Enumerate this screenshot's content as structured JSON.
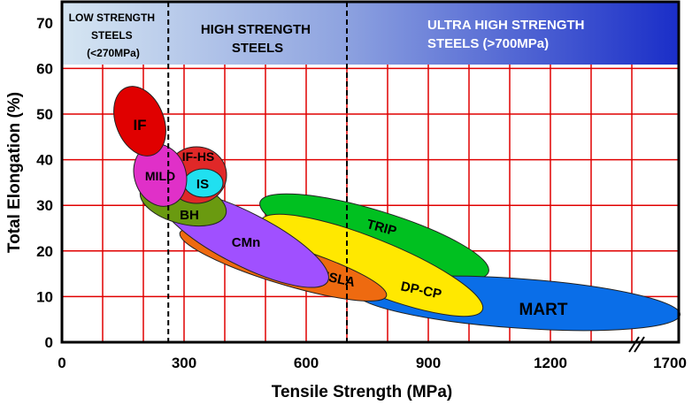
{
  "chart_data": {
    "type": "region-map",
    "title": "",
    "xlabel": "Tensile Strength (MPa)",
    "ylabel": "Total Elongation (%)",
    "xlim": [
      0,
      1700
    ],
    "ylim": [
      0,
      70
    ],
    "x_ticks": [
      "0",
      "300",
      "600",
      "900",
      "1200",
      "1700"
    ],
    "y_ticks": [
      "0",
      "10",
      "20",
      "30",
      "40",
      "50",
      "60",
      "70"
    ],
    "x_axis_break": "between 1400 and 1700",
    "grid": true,
    "grid_color": "#e00000",
    "boundaries_mpa": [
      270,
      700
    ],
    "bands": [
      {
        "lines": [
          "LOW STRENGTH",
          "STEELS",
          "(<270MPa)"
        ]
      },
      {
        "lines": [
          "HIGH STRENGTH",
          "STEELS"
        ]
      },
      {
        "lines": [
          "ULTRA HIGH STRENGTH",
          "STEELS (>700MPa)"
        ]
      }
    ],
    "regions": [
      {
        "label": "TRIP",
        "color": "#00c020",
        "strength_mpa": [
          490,
          1050
        ],
        "elongation_pct": [
          13,
          33
        ]
      },
      {
        "label": "MART",
        "color": "#0a6ee8",
        "strength_mpa": [
          720,
          1700
        ],
        "elongation_pct": [
          3,
          15
        ]
      },
      {
        "label": "DP-CP",
        "color": "#ffe800",
        "strength_mpa": [
          480,
          1030
        ],
        "elongation_pct": [
          5,
          30
        ]
      },
      {
        "label": "HSLA",
        "color": "#ee6a10",
        "strength_mpa": [
          290,
          790
        ],
        "elongation_pct": [
          10,
          25
        ]
      },
      {
        "label": "CMn",
        "color": "#a050ff",
        "strength_mpa": [
          250,
          630
        ],
        "elongation_pct": [
          11,
          32
        ]
      },
      {
        "label": "BH",
        "color": "#6a9a10",
        "strength_mpa": [
          190,
          400
        ],
        "elongation_pct": [
          26,
          37
        ]
      },
      {
        "label": "IF-HS",
        "color": "#e02828",
        "strength_mpa": [
          255,
          400
        ],
        "elongation_pct": [
          30,
          43
        ]
      },
      {
        "label": "IS",
        "color": "#20e0f0",
        "strength_mpa": [
          300,
          395
        ],
        "elongation_pct": [
          32,
          38
        ]
      },
      {
        "label": "MILD",
        "color": "#e030c8",
        "strength_mpa": [
          175,
          310
        ],
        "elongation_pct": [
          30,
          43
        ]
      },
      {
        "label": "IF",
        "color": "#e00000",
        "strength_mpa": [
          130,
          255
        ],
        "elongation_pct": [
          41,
          56
        ]
      }
    ]
  }
}
